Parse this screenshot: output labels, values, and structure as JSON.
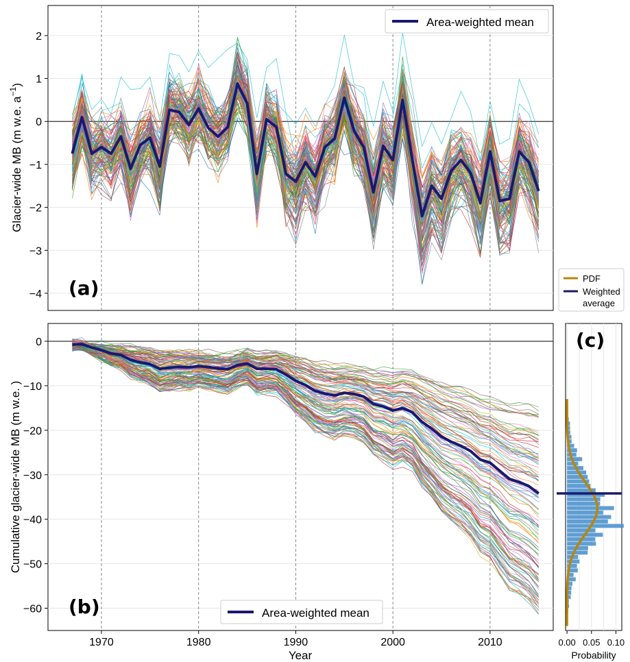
{
  "x_axis": {
    "label": "Year",
    "ticks": [
      1970,
      1980,
      1990,
      2000,
      2010
    ],
    "range": [
      1964.5,
      2016.5
    ]
  },
  "colors": {
    "mean": "#191970",
    "pdf": "#b8860b",
    "hist": "#4f94cd",
    "zero_line": "#333333",
    "vgrid": "#888888",
    "hgrid": "#e6e6e6"
  },
  "ensemble_palette": [
    "#1f77b4",
    "#ff7f0e",
    "#2ca02c",
    "#d62728",
    "#9467bd",
    "#8c564b",
    "#e377c2",
    "#7f7f7f",
    "#bcbd22",
    "#17becf"
  ],
  "legend_side": {
    "pdf_label": "PDF",
    "weighted_line1": "Weighted",
    "weighted_line2": "average"
  },
  "chart_data": [
    {
      "id": "a",
      "panel_label": "(a)",
      "type": "line",
      "ylabel_main": "Glacier-wide MB (m w.e. a",
      "ylabel_sup": "−1",
      "ylabel_close": ")",
      "ylim": [
        -4.4,
        2.7
      ],
      "yticks": [
        -4,
        -3,
        -2,
        -1,
        0,
        1,
        2
      ],
      "ytick_labels": [
        "−4",
        "−3",
        "−2",
        "−1",
        "0",
        "1",
        "2"
      ],
      "legend": {
        "label": "Area-weighted mean",
        "position": "top-right"
      },
      "mean_series": {
        "name": "Area-weighted mean",
        "x": [
          1967,
          1968,
          1969,
          1970,
          1971,
          1972,
          1973,
          1974,
          1975,
          1976,
          1977,
          1978,
          1979,
          1980,
          1981,
          1982,
          1983,
          1984,
          1985,
          1986,
          1987,
          1988,
          1989,
          1990,
          1991,
          1992,
          1993,
          1994,
          1995,
          1996,
          1997,
          1998,
          1999,
          2000,
          2001,
          2002,
          2003,
          2004,
          2005,
          2006,
          2007,
          2008,
          2009,
          2010,
          2011,
          2012,
          2013,
          2014,
          2015
        ],
        "y": [
          -0.75,
          0.1,
          -0.75,
          -0.6,
          -0.75,
          -0.35,
          -1.1,
          -0.55,
          -0.38,
          -1.05,
          0.27,
          0.22,
          -0.08,
          0.3,
          -0.15,
          -0.35,
          -0.13,
          0.88,
          0.42,
          -1.22,
          0.05,
          -0.13,
          -1.22,
          -1.4,
          -0.95,
          -1.28,
          -0.6,
          -0.4,
          0.55,
          -0.22,
          -0.6,
          -1.65,
          -0.57,
          -0.9,
          0.5,
          -0.9,
          -2.2,
          -1.5,
          -1.8,
          -1.15,
          -0.9,
          -1.2,
          -1.9,
          -0.7,
          -1.85,
          -1.8,
          -0.7,
          -0.95,
          -1.62
        ]
      },
      "ensemble": {
        "member_count": 120,
        "spread": 0.42
      }
    },
    {
      "id": "b",
      "panel_label": "(b)",
      "type": "line",
      "ylabel": "Cumulative glacier-wide MB (m w.e. )",
      "ylim": [
        -65,
        4
      ],
      "yticks": [
        -60,
        -50,
        -40,
        -30,
        -20,
        -10,
        0
      ],
      "ytick_labels": [
        "−60",
        "−50",
        "−40",
        "−30",
        "−20",
        "−10",
        "0"
      ],
      "legend": {
        "label": "Area-weighted mean",
        "position": "bottom-center"
      },
      "mean_series": {
        "name": "Area-weighted mean",
        "x": [
          1967,
          1968,
          1969,
          1970,
          1971,
          1972,
          1973,
          1974,
          1975,
          1976,
          1977,
          1978,
          1979,
          1980,
          1981,
          1982,
          1983,
          1984,
          1985,
          1986,
          1987,
          1988,
          1989,
          1990,
          1991,
          1992,
          1993,
          1994,
          1995,
          1996,
          1997,
          1998,
          1999,
          2000,
          2001,
          2002,
          2003,
          2004,
          2005,
          2006,
          2007,
          2008,
          2009,
          2010,
          2011,
          2012,
          2013,
          2014,
          2015
        ],
        "y": [
          -0.75,
          -0.65,
          -1.4,
          -2.0,
          -2.75,
          -3.1,
          -4.2,
          -4.75,
          -5.15,
          -6.2,
          -5.95,
          -5.75,
          -5.85,
          -5.6,
          -5.8,
          -6.1,
          -6.25,
          -5.4,
          -5.0,
          -6.2,
          -6.15,
          -6.3,
          -7.5,
          -8.9,
          -9.85,
          -11.15,
          -11.75,
          -12.15,
          -11.6,
          -11.85,
          -12.45,
          -14.1,
          -14.65,
          -15.55,
          -15.05,
          -15.95,
          -18.15,
          -19.65,
          -21.45,
          -22.6,
          -23.5,
          -24.7,
          -26.6,
          -27.3,
          -29.15,
          -30.95,
          -31.65,
          -32.6,
          -34.2
        ]
      },
      "ensemble": {
        "member_count": 120,
        "final_range": [
          -61,
          -15
        ]
      }
    },
    {
      "id": "c",
      "panel_label": "(c)",
      "type": "bar",
      "orientation": "horizontal",
      "xlabel": "Probability",
      "xlim": [
        -0.003,
        0.112
      ],
      "xticks": [
        0.0,
        0.05,
        0.1
      ],
      "xtick_labels": [
        "0.00",
        "0.05",
        "0.10"
      ],
      "bin_centers": [
        -61,
        -59,
        -57,
        -55,
        -53,
        -51,
        -49,
        -47,
        -45,
        -43,
        -41,
        -39,
        -37,
        -35,
        -33,
        -31,
        -29,
        -27,
        -25,
        -23,
        -21,
        -19,
        -17,
        -15
      ],
      "probabilities": [
        0.002,
        0.004,
        0.008,
        0.012,
        0.015,
        0.02,
        0.028,
        0.04,
        0.05,
        0.06,
        0.095,
        0.08,
        0.09,
        0.075,
        0.055,
        0.045,
        0.035,
        0.025,
        0.02,
        0.012,
        0.008,
        0.005,
        0.003,
        0.001
      ],
      "pdf": {
        "name": "PDF",
        "mean": -37.5,
        "sd": 5.8,
        "peak": 0.062
      },
      "weighted_average": {
        "name": "Weighted average",
        "value": -34.2
      }
    }
  ]
}
